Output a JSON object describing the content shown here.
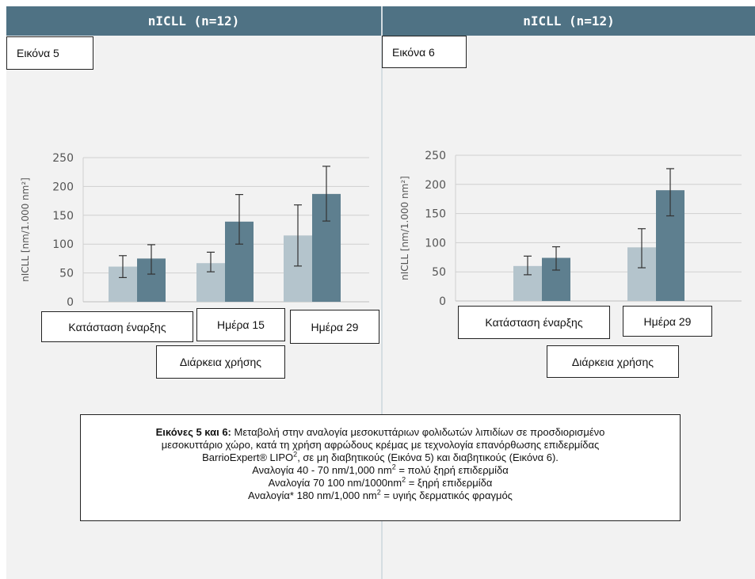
{
  "colors": {
    "header": "#4f7284",
    "bar_light": "#b4c4cc",
    "bar_dark": "#5e7f8f",
    "panel": "#f2f2f2"
  },
  "panels": [
    {
      "header": "nICLL (n=12)",
      "figure_label": "Εικόνα 5",
      "y_axis_label": "nICLL [nm/1.000 nm²]",
      "category_labels": [
        "Κατάσταση έναρξης",
        "Ημέρα 15",
        "Ημέρα 29"
      ],
      "x_title": "Διάρκεια χρήσης"
    },
    {
      "header": "nICLL (n=12)",
      "figure_label": "Εικόνα 6",
      "y_axis_label": "nICLL [nm/1.000 nm²]",
      "category_labels": [
        "Κατάσταση έναρξης",
        "Ημέρα 29"
      ],
      "x_title": "Διάρκεια χρήσης"
    }
  ],
  "chart_data": [
    {
      "type": "bar",
      "categories": [
        "Κατάσταση έναρξης",
        "Ημέρα 15",
        "Ημέρα 29"
      ],
      "series": [
        {
          "values": [
            61,
            67,
            115
          ],
          "error_low": [
            42,
            52,
            62
          ],
          "error_high": [
            80,
            86,
            168
          ]
        },
        {
          "values": [
            75,
            139,
            187
          ],
          "error_low": [
            48,
            100,
            140
          ],
          "error_high": [
            99,
            186,
            235
          ]
        }
      ],
      "yticks": [
        0,
        50,
        100,
        150,
        200,
        250
      ],
      "ylim": [
        0,
        250
      ],
      "ylabel": "nICLL [nm/1.000 nm²]",
      "xlabel": "Διάρκεια χρήσης",
      "grid": true
    },
    {
      "type": "bar",
      "categories": [
        "Κατάσταση έναρξης",
        "Ημέρα 29"
      ],
      "series": [
        {
          "values": [
            60,
            92
          ],
          "error_low": [
            45,
            57
          ],
          "error_high": [
            77,
            124
          ]
        },
        {
          "values": [
            74,
            190
          ],
          "error_low": [
            53,
            146
          ],
          "error_high": [
            93,
            227
          ]
        }
      ],
      "yticks": [
        0,
        50,
        100,
        150,
        200,
        250
      ],
      "ylim": [
        0,
        250
      ],
      "ylabel": "nICLL [nm/1.000 nm²]",
      "xlabel": "Διάρκεια χρήσης",
      "grid": true
    }
  ],
  "caption": {
    "lead": "Εικόνες 5 και 6:",
    "line1_rest": " Μεταβολή στην αναλογία μεσοκυττάριων φολιδωτών λιπιδίων σε προσδιορισμένο",
    "line2": "μεσοκυττάριο χώρο, κατά τη χρήση αφρώδους κρέμας με τεχνολογία επανόρθωσης επιδερμίδας",
    "line3a": "BarrioExpert® LIPO",
    "line3_sup": "2",
    "line3b": ", σε μη διαβητικούς (Εικόνα 5) και διαβητικούς (Εικόνα 6).",
    "line4a": "Αναλογία 40 - 70 nm/1,000 nm",
    "line4_sup": "2",
    "line4b": " = πολύ ξηρή επιδερμίδα",
    "line5a": "Αναλογία 70 100 nm/1000nm",
    "line5_sup": "2",
    "line5b": " = ξηρή επιδερμίδα",
    "line6a": "Αναλογία* 180 nm/1,000 nm",
    "line6_sup": "2",
    "line6b": " = υγιής δερματικός φραγμός"
  }
}
